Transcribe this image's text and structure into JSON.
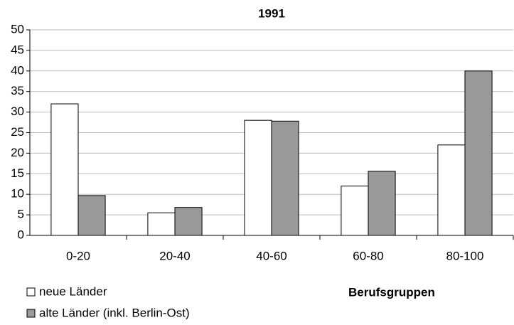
{
  "chart_data": {
    "type": "bar",
    "title": "1991",
    "x_label": "Berufsgruppen",
    "categories": [
      "0-20",
      "20-40",
      "40-60",
      "60-80",
      "80-100"
    ],
    "series": [
      {
        "name": "neue Länder",
        "color": "#ffffff",
        "values": [
          32,
          5.5,
          28,
          12,
          22
        ]
      },
      {
        "name": "alte Länder (inkl. Berlin-Ost)",
        "color": "#999999",
        "values": [
          9.7,
          6.8,
          27.8,
          15.6,
          40
        ]
      }
    ],
    "ylim": [
      0,
      50
    ],
    "yticks": [
      0,
      5,
      10,
      15,
      20,
      25,
      30,
      35,
      40,
      45,
      50
    ],
    "grid": true,
    "legend": "bottom-left"
  }
}
